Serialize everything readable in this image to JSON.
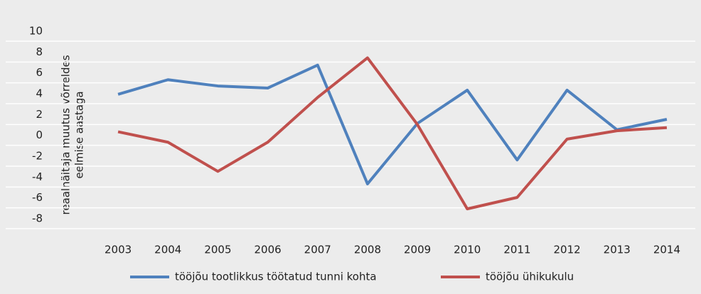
{
  "chart_data": {
    "type": "line",
    "y_label": [
      "reaalnäitaja muutus võrreldes",
      "eelmise aastaga"
    ],
    "categories": [
      "2003",
      "2004",
      "2005",
      "2006",
      "2007",
      "2008",
      "2009",
      "2010",
      "2011",
      "2012",
      "2013",
      "2014"
    ],
    "series": [
      {
        "name": "tööjõu tootlikkus töötatud tunni kohta",
        "color": "#4f81bd",
        "values": [
          4.9,
          6.3,
          5.7,
          5.5,
          7.7,
          -3.7,
          2.1,
          5.3,
          -1.4,
          5.3,
          1.5,
          2.5
        ]
      },
      {
        "name": "tööjõu ühikukulu",
        "color": "#c0504d",
        "values": [
          1.3,
          0.3,
          -2.5,
          0.3,
          4.6,
          8.4,
          2.0,
          -6.1,
          -5.0,
          0.6,
          1.4,
          1.7
        ]
      }
    ],
    "ylim": [
      -8,
      10
    ],
    "yticks": [
      -8,
      -6,
      -4,
      -2,
      0,
      2,
      4,
      6,
      8,
      10
    ],
    "grid": true,
    "legend": "bottom"
  }
}
